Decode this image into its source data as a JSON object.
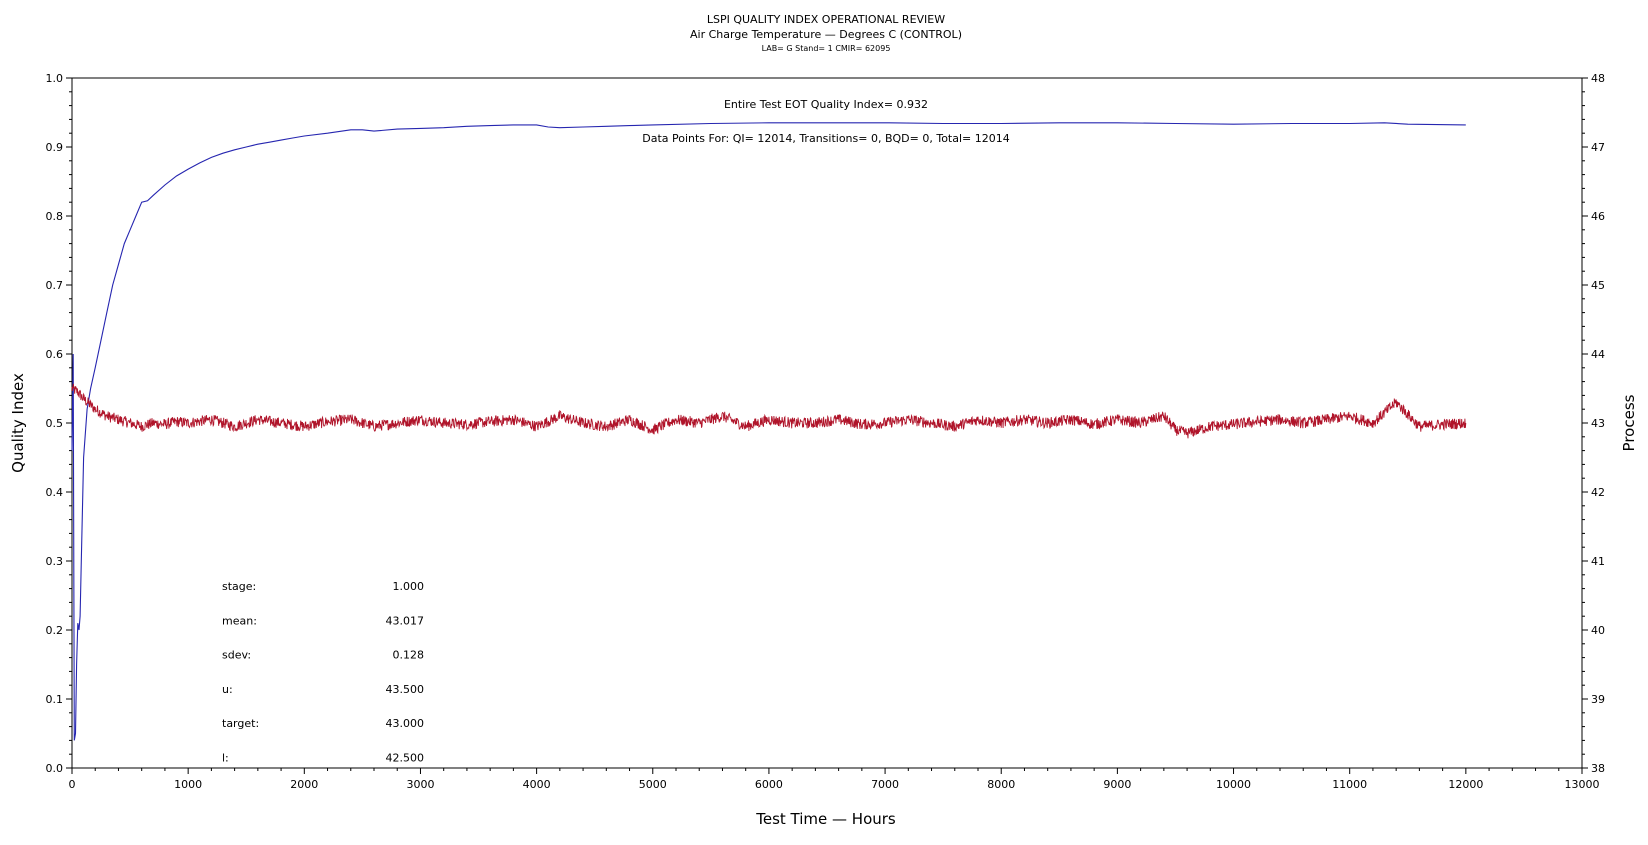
{
  "chart_data": {
    "type": "line",
    "title": "LSPI QUALITY INDEX OPERATIONAL REVIEW",
    "subtitle": "Air Charge Temperature — Degrees C (CONTROL)",
    "subtitle2": "LAB= G Stand= 1 CMIR= 62095",
    "xlabel": "Test Time — Hours",
    "ylabel": "Quality Index",
    "y2label": "Process",
    "xlim": [
      0,
      13000
    ],
    "ylim": [
      0.0,
      1.0
    ],
    "y2lim": [
      38,
      48
    ],
    "xticks": [
      "0",
      "1000",
      "2000",
      "3000",
      "4000",
      "5000",
      "6000",
      "7000",
      "8000",
      "9000",
      "10000",
      "11000",
      "12000",
      "13000"
    ],
    "yticks": [
      "0.0",
      "0.1",
      "0.2",
      "0.3",
      "0.4",
      "0.5",
      "0.6",
      "0.7",
      "0.8",
      "0.9",
      "1.0"
    ],
    "y2ticks": [
      "38",
      "39",
      "40",
      "41",
      "42",
      "43",
      "44",
      "45",
      "46",
      "47",
      "48"
    ],
    "annotation_qi": "Entire Test EOT Quality Index=   0.932",
    "annotation_points": "Data Points For: QI= 12014, Transitions=      0, BQD=      0, Total= 12014",
    "stats": [
      {
        "label": "stage:",
        "value": "1.000"
      },
      {
        "label": "mean:",
        "value": "43.017"
      },
      {
        "label": "sdev:",
        "value": "0.128"
      },
      {
        "label": "u:",
        "value": "43.500"
      },
      {
        "label": "target:",
        "value": "43.000"
      },
      {
        "label": "l:",
        "value": "42.500"
      }
    ],
    "series": [
      {
        "axis": "left",
        "color": "#2626b0",
        "x": [
          0,
          10,
          20,
          30,
          40,
          50,
          60,
          70,
          80,
          100,
          130,
          160,
          200,
          250,
          300,
          350,
          400,
          450,
          500,
          550,
          600,
          650,
          700,
          800,
          900,
          1000,
          1100,
          1200,
          1300,
          1400,
          1500,
          1600,
          1700,
          1800,
          1900,
          2000,
          2200,
          2400,
          2500,
          2600,
          2800,
          3000,
          3200,
          3400,
          3600,
          3800,
          4000,
          4100,
          4200,
          4400,
          4600,
          4800,
          5000,
          5500,
          6000,
          6500,
          7000,
          7500,
          8000,
          8500,
          9000,
          9500,
          10000,
          10500,
          11000,
          11300,
          11500,
          12000
        ],
        "values": [
          0.46,
          0.6,
          0.04,
          0.05,
          0.15,
          0.21,
          0.2,
          0.22,
          0.3,
          0.45,
          0.52,
          0.55,
          0.58,
          0.62,
          0.66,
          0.7,
          0.73,
          0.76,
          0.78,
          0.8,
          0.82,
          0.822,
          0.83,
          0.845,
          0.858,
          0.868,
          0.877,
          0.885,
          0.891,
          0.896,
          0.9,
          0.904,
          0.907,
          0.91,
          0.913,
          0.916,
          0.92,
          0.925,
          0.925,
          0.923,
          0.926,
          0.927,
          0.928,
          0.93,
          0.931,
          0.932,
          0.932,
          0.929,
          0.928,
          0.929,
          0.93,
          0.931,
          0.932,
          0.934,
          0.935,
          0.935,
          0.935,
          0.934,
          0.934,
          0.935,
          0.935,
          0.934,
          0.933,
          0.934,
          0.934,
          0.935,
          0.933,
          0.932
        ]
      },
      {
        "axis": "right",
        "color": "#b0142a",
        "x": [
          0,
          50,
          100,
          200,
          300,
          400,
          500,
          600,
          700,
          800,
          900,
          1000,
          1200,
          1400,
          1600,
          1800,
          2000,
          2200,
          2400,
          2600,
          2800,
          3000,
          3200,
          3400,
          3600,
          3800,
          4000,
          4200,
          4400,
          4600,
          4800,
          5000,
          5200,
          5400,
          5600,
          5800,
          6000,
          6200,
          6400,
          6600,
          6800,
          7000,
          7200,
          7400,
          7600,
          7800,
          8000,
          8200,
          8400,
          8600,
          8800,
          9000,
          9200,
          9400,
          9500,
          9600,
          9800,
          10000,
          10200,
          10400,
          10600,
          10800,
          11000,
          11200,
          11400,
          11600,
          11800,
          12000
        ],
        "values": [
          43.5,
          43.45,
          43.35,
          43.2,
          43.1,
          43.05,
          43.0,
          42.95,
          43.0,
          42.98,
          43.02,
          43.0,
          43.05,
          42.95,
          43.05,
          43.0,
          42.95,
          43.02,
          43.05,
          42.95,
          43.0,
          43.05,
          43.0,
          42.98,
          43.02,
          43.05,
          42.95,
          43.1,
          43.0,
          42.95,
          43.05,
          42.9,
          43.05,
          43.0,
          43.1,
          42.95,
          43.05,
          43.0,
          43.0,
          43.05,
          42.98,
          43.0,
          43.05,
          43.0,
          42.95,
          43.05,
          43.0,
          43.05,
          43.0,
          43.05,
          42.98,
          43.05,
          43.0,
          43.1,
          42.9,
          42.85,
          42.95,
          42.98,
          43.02,
          43.05,
          43.0,
          43.05,
          43.1,
          43.0,
          43.3,
          42.95,
          42.98,
          43.0
        ]
      }
    ]
  }
}
